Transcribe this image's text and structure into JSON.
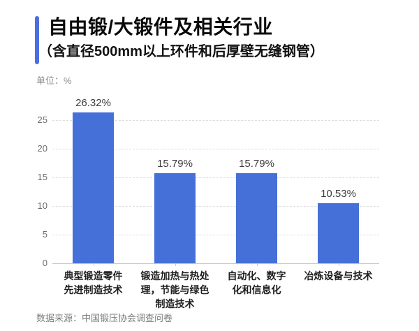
{
  "header": {
    "title": "自由锻/大锻件及相关行业",
    "subtitle": "（含直径500mm以上环件和后厚壁无缝钢管）",
    "accent_color": "#4a6fe0"
  },
  "unit_label": "单位：%",
  "source": "数据来源：中国锻压协会调查问卷",
  "chart_data": {
    "type": "bar",
    "title": "自由锻/大锻件及相关行业（含直径500mm以上环件和后厚壁无缝钢管）",
    "ylabel": "单位：%",
    "xlabel": "",
    "categories": [
      "典型锻造零件先进制造技术",
      "锻造加热与热处理，节能与绿色制造技术",
      "自动化、数字化和信息化",
      "冶炼设备与技术"
    ],
    "category_lines": [
      [
        "典型锻造零件",
        "先进制造技术"
      ],
      [
        "锻造加热与热处",
        "理，节能与绿色",
        "制造技术"
      ],
      [
        "自动化、数字",
        "化和信息化"
      ],
      [
        "冶炼设备与技术"
      ]
    ],
    "values": [
      26.32,
      15.79,
      15.79,
      10.53
    ],
    "labels": [
      "26.32%",
      "15.79%",
      "15.79%",
      "10.53%"
    ],
    "yticks": [
      0,
      5,
      10,
      15,
      20,
      25
    ],
    "ylim": [
      0,
      27
    ],
    "grid": "horizontal-dashed",
    "legend": "none",
    "bar_color": "#4570d8",
    "grid_color": "#dedede",
    "axis_color": "#c9c9c9"
  }
}
